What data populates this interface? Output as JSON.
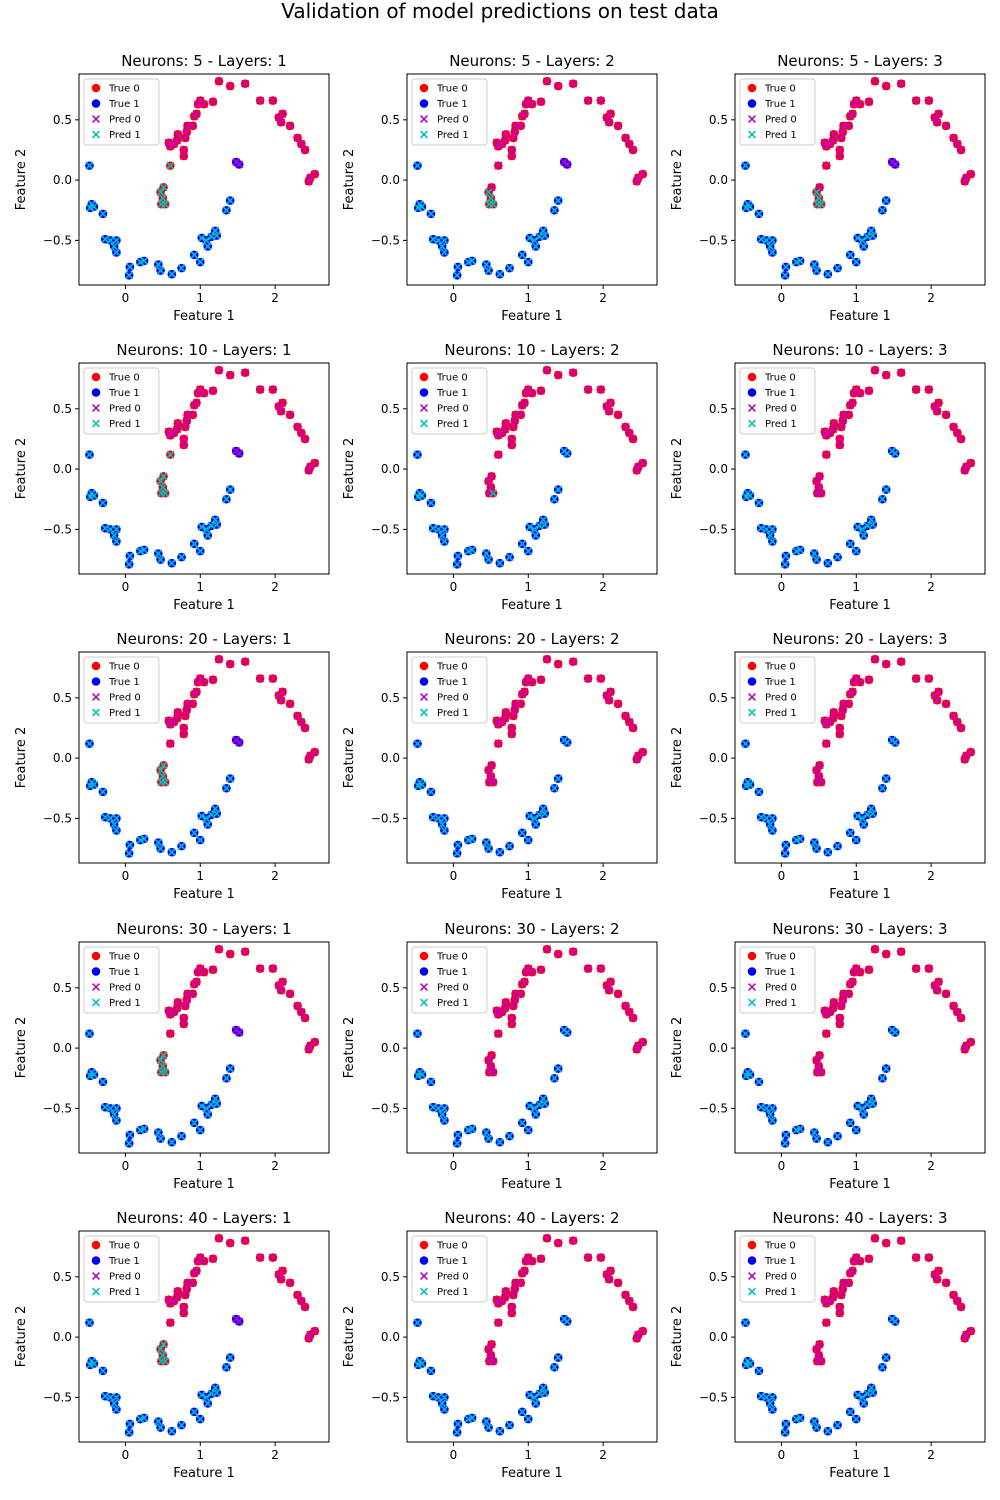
{
  "figure": {
    "title": "Validation of model predictions on test data"
  },
  "colors": {
    "true_0": "#ff0000",
    "true_1": "#0000ff",
    "pred_0": "#bf00bf",
    "pred_1": "#00bfbf"
  },
  "legend": {
    "placement": "upper-left",
    "labels": [
      "True 0",
      "True 1",
      "Pred 0",
      "Pred 1"
    ]
  },
  "chart_data": {
    "type": "scatter",
    "grid": false,
    "xlabel": "Feature 1",
    "ylabel": "Feature 2",
    "xlim": [
      -0.62,
      2.72
    ],
    "ylim": [
      -0.87,
      0.88
    ],
    "xticks": [
      0,
      1,
      2
    ],
    "yticks": [
      -0.5,
      0.0,
      0.5
    ],
    "ytick_labels": [
      "−0.5",
      "0.0",
      "0.5"
    ],
    "true_class_0": [
      [
        0.51,
        -0.06
      ],
      [
        0.47,
        -0.1
      ],
      [
        0.5,
        -0.15
      ],
      [
        0.48,
        -0.2
      ],
      [
        0.53,
        -0.2
      ],
      [
        0.6,
        0.12
      ],
      [
        0.6,
        0.28
      ],
      [
        0.58,
        0.31
      ],
      [
        0.65,
        0.3
      ],
      [
        0.69,
        0.33
      ],
      [
        0.7,
        0.38
      ],
      [
        0.78,
        0.2
      ],
      [
        0.78,
        0.25
      ],
      [
        0.8,
        0.35
      ],
      [
        0.82,
        0.4
      ],
      [
        0.83,
        0.45
      ],
      [
        0.9,
        0.45
      ],
      [
        0.92,
        0.53
      ],
      [
        0.95,
        0.55
      ],
      [
        0.97,
        0.63
      ],
      [
        1.0,
        0.66
      ],
      [
        1.05,
        0.63
      ],
      [
        1.17,
        0.65
      ],
      [
        1.25,
        0.82
      ],
      [
        1.4,
        0.78
      ],
      [
        1.6,
        0.8
      ],
      [
        1.8,
        0.66
      ],
      [
        1.97,
        0.66
      ],
      [
        2.05,
        0.52
      ],
      [
        2.1,
        0.55
      ],
      [
        2.08,
        0.48
      ],
      [
        2.2,
        0.45
      ],
      [
        2.3,
        0.35
      ],
      [
        2.35,
        0.3
      ],
      [
        2.4,
        0.25
      ],
      [
        2.47,
        0.02
      ],
      [
        2.53,
        0.05
      ],
      [
        2.45,
        -0.01
      ]
    ],
    "true_class_1": [
      [
        -0.48,
        0.12
      ],
      [
        -0.45,
        -0.2
      ],
      [
        -0.47,
        -0.23
      ],
      [
        -0.42,
        -0.22
      ],
      [
        -0.3,
        -0.28
      ],
      [
        -0.27,
        -0.49
      ],
      [
        -0.2,
        -0.5
      ],
      [
        -0.12,
        -0.5
      ],
      [
        -0.15,
        -0.55
      ],
      [
        -0.12,
        -0.6
      ],
      [
        0.06,
        -0.72
      ],
      [
        0.05,
        -0.79
      ],
      [
        0.2,
        -0.68
      ],
      [
        0.25,
        -0.67
      ],
      [
        0.44,
        -0.7
      ],
      [
        0.47,
        -0.75
      ],
      [
        0.62,
        -0.78
      ],
      [
        0.75,
        -0.73
      ],
      [
        0.92,
        -0.62
      ],
      [
        1.0,
        -0.68
      ],
      [
        1.02,
        -0.48
      ],
      [
        1.08,
        -0.5
      ],
      [
        1.1,
        -0.55
      ],
      [
        1.15,
        -0.47
      ],
      [
        1.2,
        -0.42
      ],
      [
        1.22,
        -0.46
      ],
      [
        1.35,
        -0.25
      ],
      [
        1.4,
        -0.17
      ],
      [
        1.48,
        0.15
      ],
      [
        1.52,
        0.13
      ]
    ],
    "panels": [
      {
        "title": "Neurons: 5 - Layers: 1",
        "pred0_to_1": [
          [
            0.51,
            -0.06
          ],
          [
            0.47,
            -0.1
          ],
          [
            0.5,
            -0.15
          ],
          [
            0.48,
            -0.2
          ],
          [
            0.53,
            -0.2
          ],
          [
            0.6,
            0.12
          ]
        ],
        "pred1_to_0": [
          [
            1.48,
            0.15
          ],
          [
            1.52,
            0.13
          ]
        ]
      },
      {
        "title": "Neurons: 5 - Layers: 2",
        "pred0_to_1": [
          [
            0.47,
            -0.1
          ],
          [
            0.5,
            -0.15
          ],
          [
            0.48,
            -0.2
          ],
          [
            0.53,
            -0.2
          ]
        ],
        "pred1_to_0": [
          [
            1.48,
            0.15
          ],
          [
            1.52,
            0.13
          ]
        ]
      },
      {
        "title": "Neurons: 5 - Layers: 3",
        "pred0_to_1": [
          [
            0.47,
            -0.1
          ],
          [
            0.5,
            -0.15
          ],
          [
            0.48,
            -0.2
          ],
          [
            0.53,
            -0.2
          ]
        ],
        "pred1_to_0": [
          [
            1.48,
            0.15
          ],
          [
            1.52,
            0.13
          ]
        ]
      },
      {
        "title": "Neurons: 10 - Layers: 1",
        "pred0_to_1": [
          [
            0.51,
            -0.06
          ],
          [
            0.47,
            -0.1
          ],
          [
            0.5,
            -0.15
          ],
          [
            0.48,
            -0.2
          ],
          [
            0.53,
            -0.2
          ],
          [
            0.6,
            0.12
          ]
        ],
        "pred1_to_0": [
          [
            1.48,
            0.15
          ],
          [
            1.52,
            0.13
          ]
        ]
      },
      {
        "title": "Neurons: 10 - Layers: 2",
        "pred0_to_1": [
          [
            0.53,
            -0.2
          ]
        ],
        "pred1_to_0": []
      },
      {
        "title": "Neurons: 10 - Layers: 3",
        "pred0_to_1": [],
        "pred1_to_0": []
      },
      {
        "title": "Neurons: 20 - Layers: 1",
        "pred0_to_1": [
          [
            0.51,
            -0.06
          ],
          [
            0.47,
            -0.1
          ],
          [
            0.5,
            -0.15
          ],
          [
            0.48,
            -0.2
          ],
          [
            0.53,
            -0.2
          ]
        ],
        "pred1_to_0": [
          [
            1.48,
            0.15
          ],
          [
            1.52,
            0.13
          ]
        ]
      },
      {
        "title": "Neurons: 20 - Layers: 2",
        "pred0_to_1": [],
        "pred1_to_0": []
      },
      {
        "title": "Neurons: 20 - Layers: 3",
        "pred0_to_1": [],
        "pred1_to_0": []
      },
      {
        "title": "Neurons: 30 - Layers: 1",
        "pred0_to_1": [
          [
            0.51,
            -0.06
          ],
          [
            0.47,
            -0.1
          ],
          [
            0.5,
            -0.15
          ],
          [
            0.48,
            -0.2
          ],
          [
            0.53,
            -0.2
          ]
        ],
        "pred1_to_0": [
          [
            1.48,
            0.15
          ],
          [
            1.52,
            0.13
          ]
        ]
      },
      {
        "title": "Neurons: 30 - Layers: 2",
        "pred0_to_1": [],
        "pred1_to_0": []
      },
      {
        "title": "Neurons: 30 - Layers: 3",
        "pred0_to_1": [],
        "pred1_to_0": []
      },
      {
        "title": "Neurons: 40 - Layers: 1",
        "pred0_to_1": [
          [
            0.51,
            -0.06
          ],
          [
            0.47,
            -0.1
          ],
          [
            0.5,
            -0.15
          ],
          [
            0.48,
            -0.2
          ],
          [
            0.53,
            -0.2
          ]
        ],
        "pred1_to_0": [
          [
            1.48,
            0.15
          ],
          [
            1.52,
            0.13
          ]
        ]
      },
      {
        "title": "Neurons: 40 - Layers: 2",
        "pred0_to_1": [],
        "pred1_to_0": []
      },
      {
        "title": "Neurons: 40 - Layers: 3",
        "pred0_to_1": [],
        "pred1_to_0": []
      }
    ]
  }
}
